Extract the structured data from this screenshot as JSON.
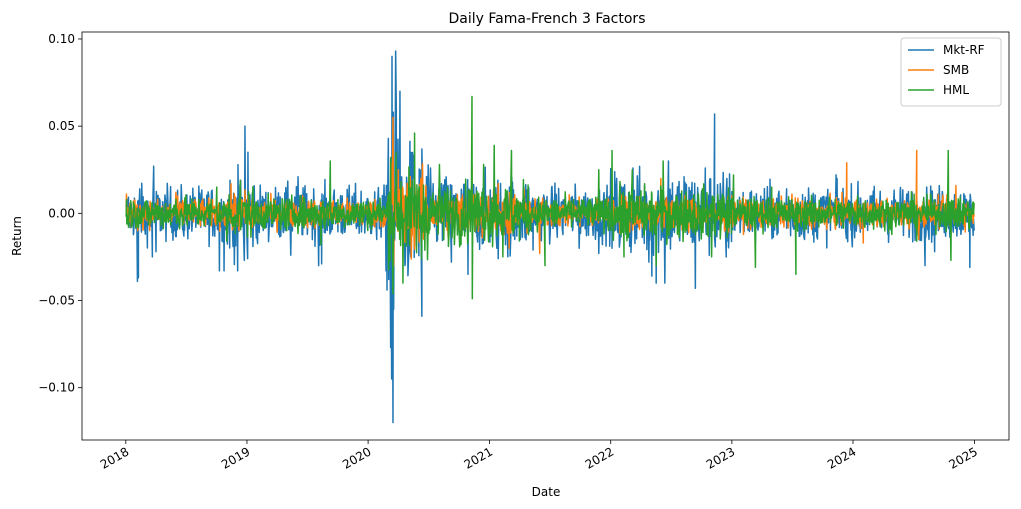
{
  "chart_data": {
    "type": "line",
    "title": "Daily Fama-French 3 Factors",
    "xlabel": "Date",
    "ylabel": "Return",
    "xlim": [
      "2017-08-22",
      "2025-04-15"
    ],
    "ylim": [
      -0.13,
      0.104
    ],
    "x_ticks": [
      {
        "date": "2018-01-01",
        "label": "2018"
      },
      {
        "date": "2019-01-01",
        "label": "2019"
      },
      {
        "date": "2020-01-01",
        "label": "2020"
      },
      {
        "date": "2021-01-01",
        "label": "2021"
      },
      {
        "date": "2022-01-01",
        "label": "2022"
      },
      {
        "date": "2023-01-01",
        "label": "2023"
      },
      {
        "date": "2024-01-01",
        "label": "2024"
      },
      {
        "date": "2025-01-01",
        "label": "2025"
      }
    ],
    "y_ticks": [
      {
        "value": 0.1,
        "label": "0.10"
      },
      {
        "value": 0.05,
        "label": "0.05"
      },
      {
        "value": 0.0,
        "label": "0.00"
      },
      {
        "value": -0.05,
        "label": "−0.05"
      },
      {
        "value": -0.1,
        "label": "−0.10"
      }
    ],
    "grid": false,
    "legend_position": "top-right",
    "series": [
      {
        "name": "Mkt-RF",
        "color": "#1f77b4",
        "points": [
          [
            "2018-01-02",
            0.008
          ],
          [
            "2018-01-29",
            -0.005
          ],
          [
            "2018-02-05",
            -0.039
          ],
          [
            "2018-02-08",
            -0.037
          ],
          [
            "2018-02-12",
            0.014
          ],
          [
            "2018-03-01",
            -0.012
          ],
          [
            "2018-03-22",
            -0.025
          ],
          [
            "2018-03-26",
            0.027
          ],
          [
            "2018-04-02",
            -0.022
          ],
          [
            "2018-05-15",
            0.009
          ],
          [
            "2018-06-25",
            -0.013
          ],
          [
            "2018-08-15",
            -0.008
          ],
          [
            "2018-10-10",
            -0.033
          ],
          [
            "2018-10-24",
            -0.033
          ],
          [
            "2018-11-20",
            -0.019
          ],
          [
            "2018-12-04",
            -0.033
          ],
          [
            "2018-12-24",
            -0.027
          ],
          [
            "2018-12-26",
            0.05
          ],
          [
            "2019-01-03",
            -0.026
          ],
          [
            "2019-01-04",
            0.035
          ],
          [
            "2019-03-15",
            0.005
          ],
          [
            "2019-05-13",
            -0.024
          ],
          [
            "2019-06-04",
            0.021
          ],
          [
            "2019-08-05",
            -0.03
          ],
          [
            "2019-08-14",
            -0.029
          ],
          [
            "2019-09-10",
            0.006
          ],
          [
            "2019-10-15",
            0.01
          ],
          [
            "2019-12-10",
            0.002
          ],
          [
            "2020-01-27",
            -0.015
          ],
          [
            "2020-02-24",
            -0.033
          ],
          [
            "2020-02-27",
            -0.044
          ],
          [
            "2020-03-02",
            0.043
          ],
          [
            "2020-03-09",
            -0.077
          ],
          [
            "2020-03-12",
            -0.095
          ],
          [
            "2020-03-13",
            0.09
          ],
          [
            "2020-03-16",
            -0.12
          ],
          [
            "2020-03-17",
            0.058
          ],
          [
            "2020-03-18",
            -0.055
          ],
          [
            "2020-03-24",
            0.093
          ],
          [
            "2020-03-26",
            0.06
          ],
          [
            "2020-04-06",
            0.07
          ],
          [
            "2020-04-21",
            -0.03
          ],
          [
            "2020-05-18",
            0.033
          ],
          [
            "2020-06-05",
            0.025
          ],
          [
            "2020-06-11",
            -0.059
          ],
          [
            "2020-07-15",
            0.017
          ],
          [
            "2020-09-08",
            -0.028
          ],
          [
            "2020-10-28",
            -0.035
          ],
          [
            "2020-11-09",
            0.012
          ],
          [
            "2021-01-27",
            -0.026
          ],
          [
            "2021-02-25",
            -0.025
          ],
          [
            "2021-03-18",
            -0.015
          ],
          [
            "2021-05-12",
            -0.021
          ],
          [
            "2021-09-28",
            -0.02
          ],
          [
            "2021-11-26",
            -0.023
          ],
          [
            "2022-01-05",
            -0.02
          ],
          [
            "2022-03-09",
            0.026
          ],
          [
            "2022-04-26",
            -0.028
          ],
          [
            "2022-05-05",
            -0.036
          ],
          [
            "2022-05-18",
            -0.04
          ],
          [
            "2022-06-13",
            -0.04
          ],
          [
            "2022-06-24",
            0.03
          ],
          [
            "2022-08-10",
            0.021
          ],
          [
            "2022-09-13",
            -0.043
          ],
          [
            "2022-10-13",
            0.026
          ],
          [
            "2022-11-10",
            0.057
          ],
          [
            "2022-12-15",
            -0.025
          ],
          [
            "2023-03-13",
            -0.017
          ],
          [
            "2023-06-15",
            0.014
          ],
          [
            "2023-11-14",
            0.02
          ],
          [
            "2024-04-15",
            -0.012
          ],
          [
            "2024-08-05",
            -0.03
          ],
          [
            "2024-09-03",
            -0.022
          ],
          [
            "2024-12-18",
            -0.031
          ],
          [
            "2024-12-31",
            -0.01
          ]
        ]
      },
      {
        "name": "SMB",
        "color": "#ff7f0e",
        "points": [
          [
            "2018-01-03",
            0.011
          ],
          [
            "2018-02-06",
            -0.01
          ],
          [
            "2018-06-01",
            0.012
          ],
          [
            "2019-01-04",
            0.01
          ],
          [
            "2019-06-18",
            0.01
          ],
          [
            "2019-12-02",
            0.006
          ],
          [
            "2020-03-10",
            0.029
          ],
          [
            "2020-03-16",
            0.055
          ],
          [
            "2020-03-18",
            -0.03
          ],
          [
            "2020-04-01",
            0.025
          ],
          [
            "2020-06-08",
            0.02
          ],
          [
            "2020-11-09",
            0.028
          ],
          [
            "2021-01-27",
            0.017
          ],
          [
            "2021-03-01",
            -0.02
          ],
          [
            "2021-06-01",
            -0.023
          ],
          [
            "2022-06-01",
            0.02
          ],
          [
            "2023-01-06",
            0.014
          ],
          [
            "2023-07-01",
            0.011
          ],
          [
            "2023-12-13",
            0.029
          ],
          [
            "2024-02-01",
            -0.017
          ],
          [
            "2024-07-11",
            0.036
          ],
          [
            "2024-07-17",
            -0.015
          ],
          [
            "2024-11-06",
            0.016
          ],
          [
            "2024-12-31",
            -0.002
          ]
        ]
      },
      {
        "name": "HML",
        "color": "#2ca02c",
        "points": [
          [
            "2018-01-02",
            -0.002
          ],
          [
            "2018-06-01",
            0.008
          ],
          [
            "2018-10-02",
            0.015
          ],
          [
            "2018-11-01",
            -0.016
          ],
          [
            "2018-12-12",
            0.019
          ],
          [
            "2019-05-01",
            -0.01
          ],
          [
            "2019-08-12",
            -0.018
          ],
          [
            "2019-09-09",
            0.03
          ],
          [
            "2020-01-15",
            -0.006
          ],
          [
            "2020-03-09",
            0.032
          ],
          [
            "2020-03-16",
            -0.046
          ],
          [
            "2020-03-25",
            0.035
          ],
          [
            "2020-04-15",
            -0.04
          ],
          [
            "2020-05-20",
            0.046
          ],
          [
            "2020-06-10",
            -0.026
          ],
          [
            "2020-08-03",
            0.028
          ],
          [
            "2020-11-09",
            0.067
          ],
          [
            "2020-11-10",
            -0.049
          ],
          [
            "2020-12-14",
            0.028
          ],
          [
            "2021-01-15",
            0.039
          ],
          [
            "2021-02-10",
            -0.025
          ],
          [
            "2021-03-08",
            0.036
          ],
          [
            "2021-06-17",
            -0.03
          ],
          [
            "2021-11-26",
            0.025
          ],
          [
            "2022-01-05",
            0.036
          ],
          [
            "2022-02-10",
            -0.025
          ],
          [
            "2022-03-07",
            0.025
          ],
          [
            "2022-05-18",
            -0.03
          ],
          [
            "2022-06-08",
            0.03
          ],
          [
            "2022-11-01",
            -0.025
          ],
          [
            "2023-01-06",
            0.022
          ],
          [
            "2023-03-13",
            -0.031
          ],
          [
            "2023-05-01",
            0.015
          ],
          [
            "2023-07-13",
            -0.035
          ],
          [
            "2024-01-15",
            0.01
          ],
          [
            "2024-07-11",
            -0.016
          ],
          [
            "2024-10-14",
            0.036
          ],
          [
            "2024-10-22",
            -0.027
          ],
          [
            "2024-12-31",
            0.006
          ]
        ]
      }
    ]
  }
}
